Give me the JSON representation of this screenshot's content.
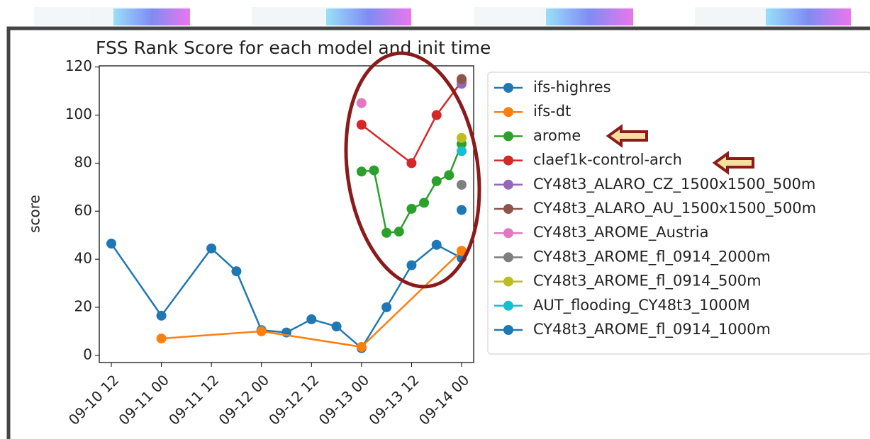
{
  "chart_data": {
    "type": "line",
    "title": "FSS Rank Score for each model and init time",
    "y_label": "score",
    "ylim": [
      -3,
      120.5
    ],
    "yticks": [
      0,
      20,
      40,
      60,
      80,
      100,
      120
    ],
    "xticks": [
      "09-10 12",
      "09-11 00",
      "09-11 12",
      "09-12 00",
      "09-12 12",
      "09-13 00",
      "09-13 12",
      "09-14 00"
    ],
    "series": [
      {
        "name": "ifs-highres",
        "color": "#1f77b4",
        "x": [
          "09-10 12",
          "09-11 00",
          "09-11 12",
          "09-11 18",
          "09-12 00",
          "09-12 06",
          "09-12 12",
          "09-12 18",
          "09-13 00",
          "09-13 06",
          "09-13 12",
          "09-13 18",
          "09-14 00"
        ],
        "values": [
          46.5,
          16.5,
          44.5,
          35,
          10.5,
          9.5,
          15,
          12,
          3,
          20,
          37.5,
          46,
          40.5
        ]
      },
      {
        "name": "ifs-dt",
        "color": "#ff7f0e",
        "x": [
          "09-11 00",
          "09-12 00",
          "09-13 00",
          "09-14 00"
        ],
        "values": [
          7,
          10,
          3.5,
          43.5
        ]
      },
      {
        "name": "arome",
        "color": "#2ca02c",
        "x": [
          "09-13 00",
          "09-13 03",
          "09-13 06",
          "09-13 09",
          "09-13 12",
          "09-13 15",
          "09-13 18",
          "09-13 21",
          "09-14 00"
        ],
        "values": [
          76.5,
          77,
          51,
          51.5,
          61,
          63.5,
          72.5,
          75,
          88
        ]
      },
      {
        "name": "claef1k-control-arch",
        "color": "#d62728",
        "x": [
          "09-13 00",
          "09-13 12",
          "09-13 18",
          "09-14 00"
        ],
        "values": [
          96,
          80,
          100,
          114
        ]
      },
      {
        "name": "CY48t3_ALARO_CZ_1500x1500_500m",
        "color": "#9467bd",
        "x": [
          "09-14 00"
        ],
        "values": [
          113
        ]
      },
      {
        "name": "CY48t3_ALARO_AU_1500x1500_500m",
        "color": "#8c564b",
        "x": [
          "09-14 00"
        ],
        "values": [
          115
        ]
      },
      {
        "name": "CY48t3_AROME_Austria",
        "color": "#e377c2",
        "x": [
          "09-13 00"
        ],
        "values": [
          105
        ]
      },
      {
        "name": "CY48t3_AROME_fl_0914_2000m",
        "color": "#7f7f7f",
        "x": [
          "09-14 00"
        ],
        "values": [
          71
        ]
      },
      {
        "name": "CY48t3_AROME_fl_0914_500m",
        "color": "#bcbd22",
        "x": [
          "09-14 00"
        ],
        "values": [
          90.5
        ]
      },
      {
        "name": "AUT_flooding_CY48t3_1000M",
        "color": "#17becf",
        "x": [
          "09-14 00"
        ],
        "values": [
          85
        ]
      },
      {
        "name": "CY48t3_AROME_fl_0914_1000m",
        "color": "#1f77b4",
        "x": [
          "09-14 00"
        ],
        "values": [
          60.5
        ]
      }
    ]
  }
}
